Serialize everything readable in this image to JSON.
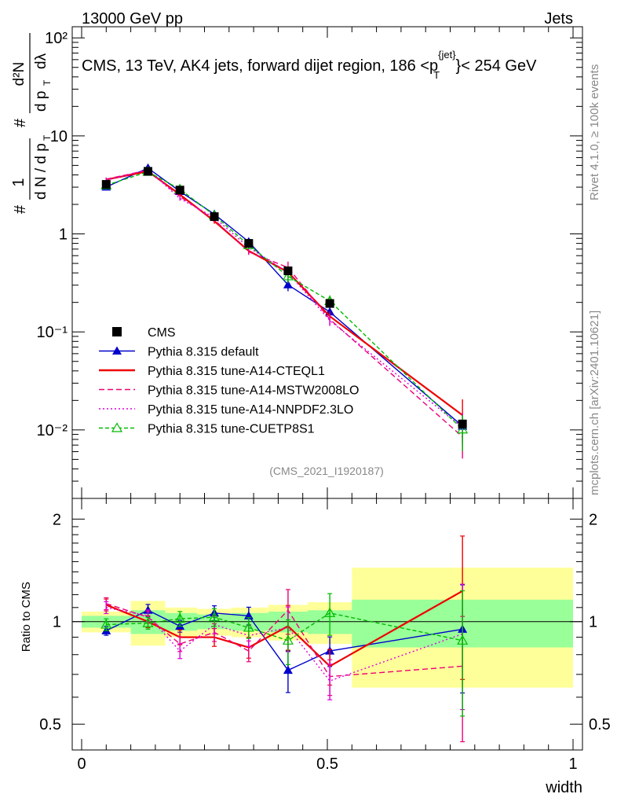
{
  "header": {
    "left": "13000 GeV pp",
    "right": "Jets"
  },
  "title": "CMS, 13 TeV, AK4 jets, forward dijet region, 186 <p",
  "title_sup": "{jet}",
  "title_sub": "T",
  "title_tail": "}< 254 GeV",
  "side_top": "Rivet 4.1.0, ≥ 100k events",
  "side_bottom": "mcplots.cern.ch [arXiv:2401.10621]",
  "analysis_tag": "(CMS_2021_I1920187)",
  "ylabel_top": {
    "pre": "#",
    "one": "1",
    "dn_dpt": "d N / d p",
    "t": "T",
    "hash": "#",
    "d2n": "d²N",
    "dpt_dl": "d p",
    "dl": "dλ"
  },
  "ylabel_ratio": "Ratio to CMS",
  "xlabel": "width",
  "colors": {
    "data": "#000000",
    "default": "#0000cc",
    "cteql1": "#ee0000",
    "mstw": "#ee0077",
    "nnpdf": "#dd00dd",
    "cuetp8s1": "#00bb00",
    "band_yellow": "#ffff99",
    "band_green": "#99ff99"
  },
  "chart_data": {
    "type": "line",
    "x": [
      0.05,
      0.135,
      0.2,
      0.27,
      0.34,
      0.42,
      0.505,
      0.775
    ],
    "x_edges": [
      0.0,
      0.1,
      0.17,
      0.235,
      0.305,
      0.38,
      0.46,
      0.55,
      1.0
    ],
    "xlim": [
      0,
      1
    ],
    "ylim_log": [
      0.002,
      130
    ],
    "x_ticks": [
      "0",
      "0.5",
      "1"
    ],
    "y_ticks": [
      "10⁻²",
      "10⁻¹",
      "1",
      "10",
      "10²"
    ],
    "ratio_ticks": [
      "0.5",
      "1",
      "2"
    ],
    "ratio_ylim": [
      0.42,
      2.3
    ],
    "data": {
      "name": "CMS",
      "values": [
        3.2,
        4.35,
        2.8,
        1.5,
        0.8,
        0.42,
        0.195,
        0.0115
      ],
      "band_green": [
        [
          0.96,
          1.04
        ],
        [
          0.92,
          1.08
        ],
        [
          0.94,
          1.06
        ],
        [
          0.95,
          1.05
        ],
        [
          0.94,
          1.06
        ],
        [
          0.93,
          1.07
        ],
        [
          0.92,
          1.08
        ],
        [
          0.84,
          1.16
        ]
      ],
      "band_yellow": [
        [
          0.93,
          1.07
        ],
        [
          0.85,
          1.15
        ],
        [
          0.9,
          1.1
        ],
        [
          0.91,
          1.09
        ],
        [
          0.9,
          1.1
        ],
        [
          0.88,
          1.12
        ],
        [
          0.86,
          1.14
        ],
        [
          0.64,
          1.44
        ]
      ]
    },
    "series": [
      {
        "name": "Pythia 8.315 default",
        "key": "default",
        "dash": "",
        "marker": "tri-fill",
        "ratio": [
          0.94,
          1.08,
          0.97,
          1.06,
          1.04,
          0.72,
          0.82,
          0.95
        ],
        "err": [
          0.03,
          0.04,
          0.04,
          0.05,
          0.06,
          0.14,
          0.1,
          0.35
        ]
      },
      {
        "name": "Pythia 8.315 tune-A14-CTEQL1",
        "key": "cteql1",
        "dash": "",
        "marker": "none",
        "ratio": [
          1.12,
          1.0,
          0.9,
          0.9,
          0.84,
          0.97,
          0.74,
          1.23
        ],
        "err": [
          0.04,
          0.04,
          0.05,
          0.06,
          0.07,
          0.15,
          0.12,
          0.45
        ]
      },
      {
        "name": "Pythia 8.315 tune-A14-MSTW2008LO",
        "key": "mstw",
        "dash": "7,4",
        "marker": "none",
        "ratio": [
          1.13,
          1.03,
          0.86,
          0.93,
          0.82,
          1.08,
          0.69,
          0.74
        ],
        "err": [
          0.04,
          0.04,
          0.05,
          0.06,
          0.07,
          0.15,
          0.12,
          0.4
        ]
      },
      {
        "name": "Pythia 8.315 tune-A14-NNPDF2.3LO",
        "key": "nnpdf",
        "dash": "2,3",
        "marker": "none",
        "ratio": [
          1.1,
          1.04,
          0.82,
          0.98,
          0.91,
          0.96,
          0.67,
          0.92
        ],
        "err": [
          0.04,
          0.04,
          0.05,
          0.06,
          0.07,
          0.15,
          0.12,
          0.4
        ]
      },
      {
        "name": "Pythia 8.315 tune-CUETP8S1",
        "key": "cuetp8s1",
        "dash": "5,3",
        "marker": "tri-open",
        "ratio": [
          0.98,
          0.99,
          1.02,
          1.03,
          0.96,
          0.88,
          1.06,
          0.88
        ],
        "err": [
          0.04,
          0.04,
          0.05,
          0.06,
          0.07,
          0.15,
          0.14,
          0.4
        ]
      }
    ]
  }
}
